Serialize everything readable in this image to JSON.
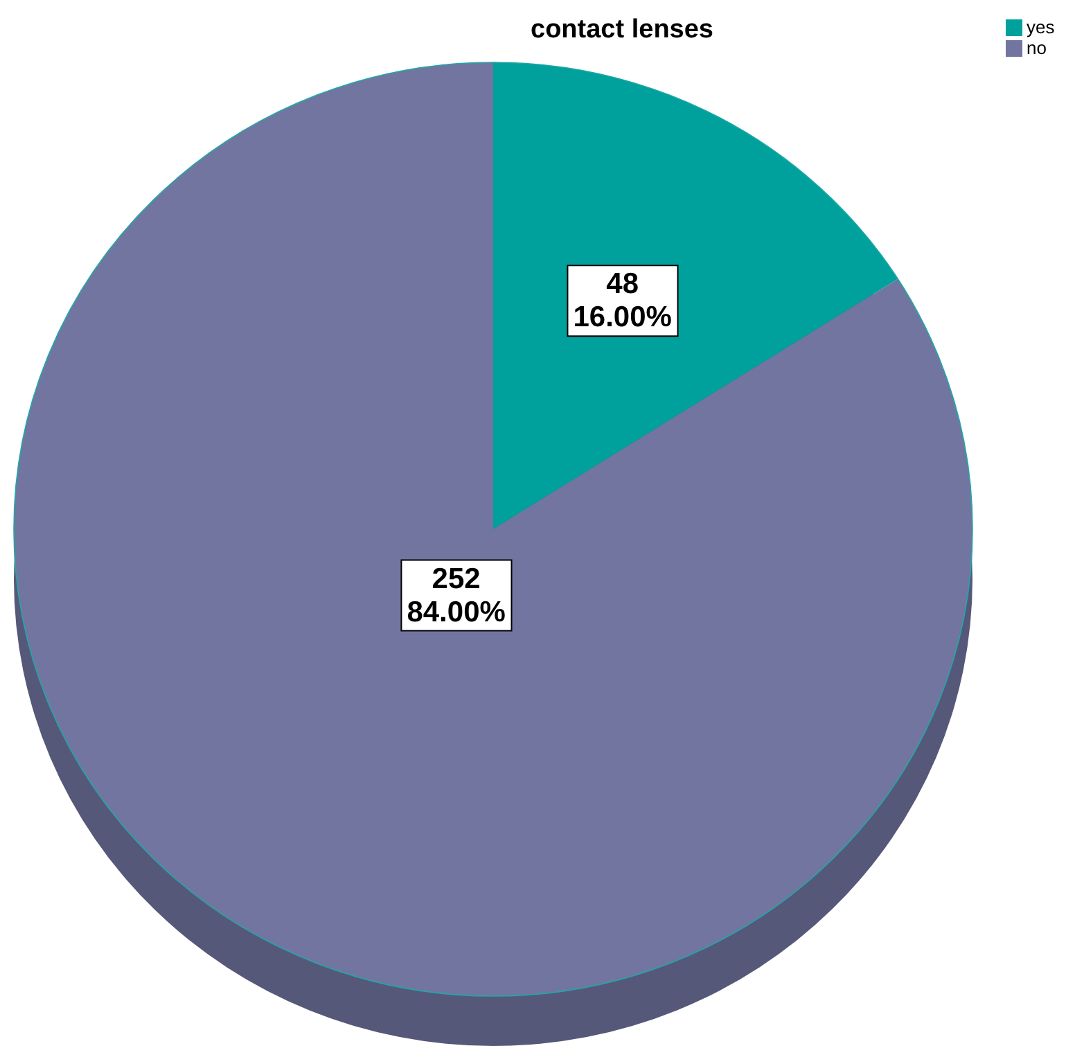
{
  "chart_data": {
    "type": "pie",
    "title": "contact lenses",
    "categories": [
      "yes",
      "no"
    ],
    "values": [
      48,
      252
    ],
    "colors": [
      "#00a09c",
      "#7375a1"
    ],
    "value_labels": [
      "48\n16.00%",
      "252\n84.00%"
    ],
    "legend": "top right"
  }
}
